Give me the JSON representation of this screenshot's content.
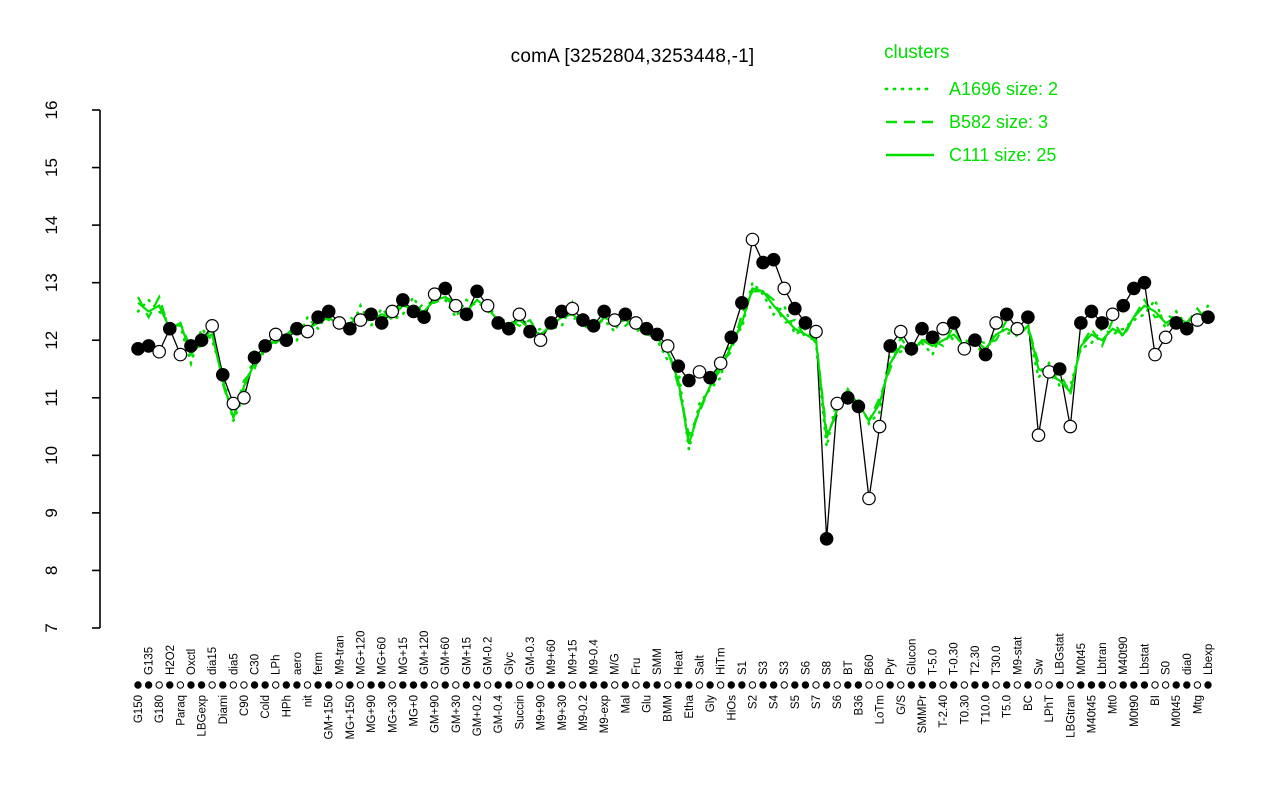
{
  "title": "comA [3252804,3253448,-1]",
  "legend": {
    "title": "clusters",
    "entries": [
      {
        "label": "A1696 size: 2",
        "style": "dotted"
      },
      {
        "label": "B582 size: 3",
        "style": "dashed"
      },
      {
        "label": "C111 size: 25",
        "style": "solid"
      }
    ]
  },
  "colors": {
    "cluster": "#00DF00",
    "gene": "#000000",
    "background": "#FFFFFF"
  },
  "chart_data": {
    "type": "line",
    "title": "comA [3252804,3253448,-1]",
    "xlabel": "",
    "ylabel": "",
    "ylim": [
      7,
      16
    ],
    "yticks": [
      7,
      8,
      9,
      10,
      11,
      12,
      13,
      14,
      15,
      16
    ],
    "grid": false,
    "legend_position": "top-right",
    "categories": [
      "G150",
      "G135",
      "G180",
      "H2O2",
      "Paraq",
      "Oxctl",
      "LBGexp",
      "dia15",
      "Diami",
      "dia5",
      "C90",
      "C30",
      "Cold",
      "LPh",
      "HPh",
      "aero",
      "nit",
      "ferm",
      "GM+150",
      "M9-tran",
      "MG+150",
      "MG+120",
      "MG+90",
      "MG+60",
      "MG+30",
      "MG+15",
      "MG+0",
      "GM+120",
      "GM+90",
      "GM+60",
      "GM+30",
      "GM+15",
      "GM+0.2",
      "GM-0.2",
      "GM-0.4",
      "Glyc",
      "Succin",
      "GM-0.3",
      "M9+90",
      "M9+60",
      "M9+30",
      "M9+15",
      "M9-0.2",
      "M9-0.4",
      "M9-exp",
      "M/G",
      "Mal",
      "Fru",
      "Glu",
      "SMM",
      "BMM",
      "Heat",
      "Etha",
      "Salt",
      "Gly",
      "HiTm",
      "HiOs",
      "S1",
      "S2",
      "S3",
      "S4",
      "S3",
      "S5",
      "S6",
      "S7",
      "S8",
      "S6",
      "BT",
      "B36",
      "B60",
      "LoTm",
      "Pyr",
      "G/S",
      "Glucon",
      "SMMPr",
      "T-5.0",
      "T-2.40",
      "T-0.30",
      "T0.30",
      "T2.30",
      "T10.0",
      "T30.0",
      "T5.0",
      "M9-stat",
      "BC",
      "Sw",
      "LPhT",
      "LBGstat",
      "LBGtran",
      "M0t45",
      "M40t45",
      "Lbtran",
      "Mt0",
      "M40t90",
      "M0t90",
      "Lbstat",
      "BI",
      "S0",
      "M0t45",
      "dia0",
      "Mtg",
      "Lbexp"
    ],
    "marker_filled": [
      1,
      1,
      0,
      1,
      0,
      1,
      1,
      0,
      1,
      0,
      0,
      1,
      1,
      0,
      1,
      1,
      0,
      1,
      1,
      0,
      1,
      0,
      1,
      1,
      0,
      1,
      1,
      1,
      0,
      1,
      0,
      1,
      1,
      0,
      1,
      1,
      0,
      1,
      0,
      1,
      1,
      0,
      1,
      1,
      1,
      0,
      1,
      0,
      1,
      1,
      0,
      1,
      1,
      0,
      1,
      0,
      1,
      1,
      0,
      1,
      1,
      0,
      1,
      1,
      0,
      1,
      0,
      1,
      1,
      0,
      0,
      1,
      0,
      1,
      1,
      1,
      0,
      1,
      0,
      1,
      1,
      0,
      1,
      0,
      1,
      0,
      0,
      1,
      0,
      1,
      1,
      1,
      0,
      1,
      1,
      1,
      0,
      0,
      1,
      1,
      0,
      1
    ],
    "series": [
      {
        "name": "comA",
        "role": "gene",
        "color": "#000000",
        "style": "solid-markers",
        "values": [
          11.85,
          11.9,
          11.8,
          12.2,
          11.75,
          11.9,
          12.0,
          12.25,
          11.4,
          10.9,
          11.0,
          11.7,
          11.9,
          12.1,
          12.0,
          12.2,
          12.15,
          12.4,
          12.5,
          12.3,
          12.2,
          12.35,
          12.45,
          12.3,
          12.5,
          12.7,
          12.5,
          12.4,
          12.8,
          12.9,
          12.6,
          12.45,
          12.85,
          12.6,
          12.3,
          12.2,
          12.45,
          12.15,
          12.0,
          12.3,
          12.5,
          12.55,
          12.35,
          12.25,
          12.5,
          12.35,
          12.45,
          12.3,
          12.2,
          12.1,
          11.9,
          11.55,
          11.3,
          11.45,
          11.35,
          11.6,
          12.05,
          12.65,
          13.75,
          13.35,
          13.4,
          12.9,
          12.55,
          12.3,
          12.15,
          8.55,
          10.9,
          11.0,
          10.85,
          9.25,
          10.5,
          11.9,
          12.15,
          11.85,
          12.2,
          12.05,
          12.2,
          12.3,
          11.85,
          12.0,
          11.75,
          12.3,
          12.45,
          12.2,
          12.4,
          10.35,
          11.45,
          11.5,
          10.5,
          12.3,
          12.5,
          12.3,
          12.45,
          12.6,
          12.9,
          13.0,
          11.75,
          12.05,
          12.3,
          12.2,
          12.35,
          12.4
        ]
      },
      {
        "name": "A1696",
        "role": "cluster",
        "size": 2,
        "color": "#00DF00",
        "style": "dotted",
        "values": [
          12.5,
          12.7,
          12.5,
          12.3,
          12.25,
          11.6,
          12.2,
          12.0,
          11.4,
          10.6,
          11.05,
          11.8,
          11.75,
          12.1,
          12.05,
          12.0,
          12.4,
          12.2,
          12.5,
          12.2,
          12.15,
          12.6,
          12.25,
          12.55,
          12.35,
          12.45,
          12.75,
          12.4,
          12.8,
          12.7,
          12.4,
          12.7,
          12.6,
          12.65,
          12.3,
          12.1,
          12.55,
          12.1,
          12.2,
          12.2,
          12.25,
          12.65,
          12.2,
          12.3,
          12.35,
          12.15,
          12.55,
          12.15,
          12.25,
          12.0,
          11.65,
          11.5,
          10.1,
          10.9,
          11.15,
          11.35,
          12.1,
          12.2,
          13.0,
          12.8,
          12.45,
          12.6,
          12.1,
          12.2,
          11.95,
          10.15,
          11.0,
          10.9,
          11.0,
          10.55,
          10.75,
          11.8,
          11.8,
          11.9,
          11.95,
          11.75,
          12.2,
          12.0,
          12.0,
          11.95,
          11.7,
          12.3,
          12.1,
          12.2,
          12.2,
          11.35,
          11.6,
          11.2,
          11.2,
          11.85,
          11.95,
          12.2,
          12.1,
          12.2,
          12.35,
          12.45,
          12.7,
          12.2,
          12.5,
          12.25,
          12.3,
          12.6
        ]
      },
      {
        "name": "B582",
        "role": "cluster",
        "size": 3,
        "color": "#00DF00",
        "style": "dashed",
        "values": [
          12.75,
          12.4,
          12.75,
          12.15,
          12.3,
          11.85,
          11.9,
          12.25,
          11.25,
          10.65,
          11.3,
          11.5,
          12.0,
          11.95,
          12.1,
          12.25,
          12.1,
          12.45,
          12.35,
          12.25,
          12.4,
          12.3,
          12.5,
          12.4,
          12.4,
          12.7,
          12.45,
          12.65,
          12.65,
          12.75,
          12.65,
          12.4,
          12.85,
          12.5,
          12.35,
          12.35,
          12.25,
          12.35,
          12.05,
          12.25,
          12.5,
          12.35,
          12.45,
          12.15,
          12.4,
          12.4,
          12.25,
          12.4,
          12.1,
          12.05,
          11.9,
          11.2,
          10.35,
          10.75,
          11.2,
          11.6,
          11.8,
          12.45,
          12.85,
          12.85,
          12.7,
          12.3,
          12.35,
          12.05,
          12.0,
          10.4,
          10.7,
          11.15,
          10.85,
          10.6,
          11.0,
          11.5,
          12.05,
          11.75,
          12.0,
          12.0,
          11.9,
          12.25,
          11.85,
          12.0,
          11.95,
          12.0,
          12.35,
          12.05,
          12.25,
          11.6,
          11.3,
          11.45,
          11.05,
          11.9,
          12.2,
          11.9,
          12.35,
          12.05,
          12.4,
          12.7,
          12.4,
          12.45,
          12.35,
          12.3,
          12.55,
          12.3
        ]
      },
      {
        "name": "C111",
        "role": "cluster",
        "size": 25,
        "color": "#00DF00",
        "style": "solid",
        "values": [
          12.65,
          12.5,
          12.6,
          12.2,
          12.3,
          11.75,
          12.0,
          12.1,
          11.3,
          10.65,
          11.2,
          11.6,
          11.85,
          12.0,
          12.1,
          12.15,
          12.2,
          12.3,
          12.4,
          12.25,
          12.3,
          12.4,
          12.35,
          12.45,
          12.4,
          12.6,
          12.55,
          12.5,
          12.7,
          12.75,
          12.55,
          12.5,
          12.7,
          12.55,
          12.35,
          12.25,
          12.35,
          12.2,
          12.1,
          12.25,
          12.4,
          12.45,
          12.3,
          12.2,
          12.4,
          12.3,
          12.35,
          12.25,
          12.15,
          12.05,
          11.8,
          11.3,
          10.2,
          10.8,
          11.2,
          11.5,
          11.9,
          12.3,
          12.9,
          12.85,
          12.6,
          12.4,
          12.2,
          12.1,
          12.0,
          10.3,
          10.8,
          11.0,
          10.9,
          10.6,
          10.9,
          11.6,
          11.9,
          11.8,
          12.0,
          11.9,
          12.0,
          12.1,
          11.9,
          12.0,
          11.85,
          12.1,
          12.2,
          12.1,
          12.25,
          11.5,
          11.4,
          11.3,
          11.1,
          11.9,
          12.1,
          12.0,
          12.2,
          12.1,
          12.4,
          12.6,
          12.5,
          12.3,
          12.4,
          12.3,
          12.45,
          12.4
        ]
      }
    ]
  }
}
